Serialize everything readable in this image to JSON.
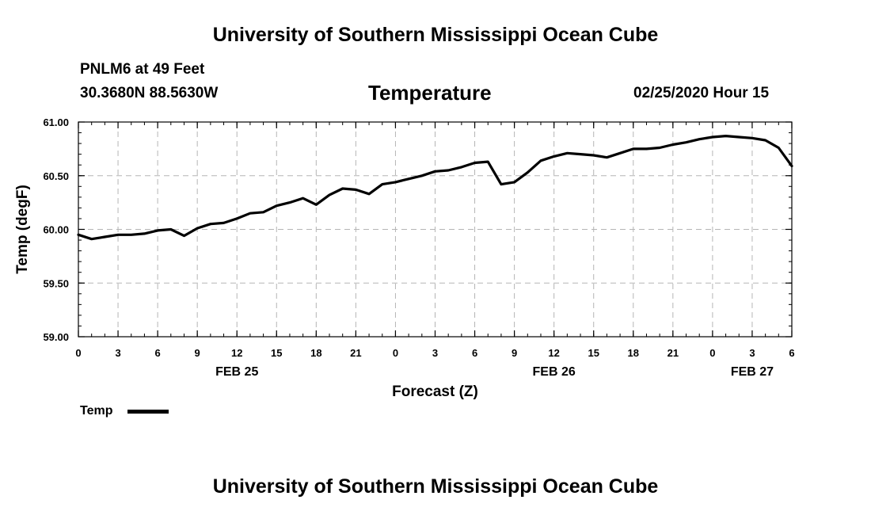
{
  "header": {
    "title": "University of Southern Mississippi Ocean Cube",
    "station": "PNLM6 at 49 Feet",
    "coords": "30.3680N 88.5630W",
    "chart_title": "Temperature",
    "run_time": "02/25/2020 Hour 15"
  },
  "footer": {
    "title": "University of Southern Mississippi Ocean Cube"
  },
  "legend": {
    "label": "Temp"
  },
  "chart_data": {
    "type": "line",
    "title": "Temperature",
    "xlabel": "Forecast (Z)",
    "ylabel": "Temp (degF)",
    "ylim": [
      59.0,
      61.0
    ],
    "y_ticks": [
      "61.00",
      "60.50",
      "60.00",
      "59.50",
      "59.00"
    ],
    "y_tick_values": [
      61.0,
      60.5,
      60.0,
      59.5,
      59.0
    ],
    "xlim": [
      0,
      54
    ],
    "x_tick_hours": [
      0,
      3,
      6,
      9,
      12,
      15,
      18,
      21,
      24,
      27,
      30,
      33,
      36,
      39,
      42,
      45,
      48,
      51,
      54
    ],
    "x_tick_labels": [
      "0",
      "3",
      "6",
      "9",
      "12",
      "15",
      "18",
      "21",
      "0",
      "3",
      "6",
      "9",
      "12",
      "15",
      "18",
      "21",
      "0",
      "3",
      "6"
    ],
    "day_labels": [
      {
        "label": "FEB 25",
        "hour": 12
      },
      {
        "label": "FEB 26",
        "hour": 36
      },
      {
        "label": "FEB 27",
        "hour": 51
      }
    ],
    "grid": true,
    "line_color": "#000000",
    "series": [
      {
        "name": "Temp",
        "x": [
          0,
          1,
          2,
          3,
          4,
          5,
          6,
          7,
          8,
          9,
          10,
          11,
          12,
          13,
          14,
          15,
          16,
          17,
          18,
          19,
          20,
          21,
          22,
          23,
          24,
          25,
          26,
          27,
          28,
          29,
          30,
          31,
          32,
          33,
          34,
          35,
          36,
          37,
          38,
          39,
          40,
          41,
          42,
          43,
          44,
          45,
          46,
          47,
          48,
          49,
          50,
          51,
          52,
          53,
          54
        ],
        "values": [
          59.95,
          59.91,
          59.93,
          59.95,
          59.95,
          59.96,
          59.99,
          60.0,
          59.94,
          60.01,
          60.05,
          60.06,
          60.1,
          60.15,
          60.16,
          60.22,
          60.25,
          60.29,
          60.23,
          60.32,
          60.38,
          60.37,
          60.33,
          60.42,
          60.44,
          60.47,
          60.5,
          60.54,
          60.55,
          60.58,
          60.62,
          60.63,
          60.42,
          60.44,
          60.53,
          60.64,
          60.68,
          60.71,
          60.7,
          60.69,
          60.67,
          60.71,
          60.75,
          60.75,
          60.76,
          60.79,
          60.81,
          60.84,
          60.86,
          60.87,
          60.86,
          60.85,
          60.83,
          60.76,
          60.59
        ]
      }
    ]
  }
}
